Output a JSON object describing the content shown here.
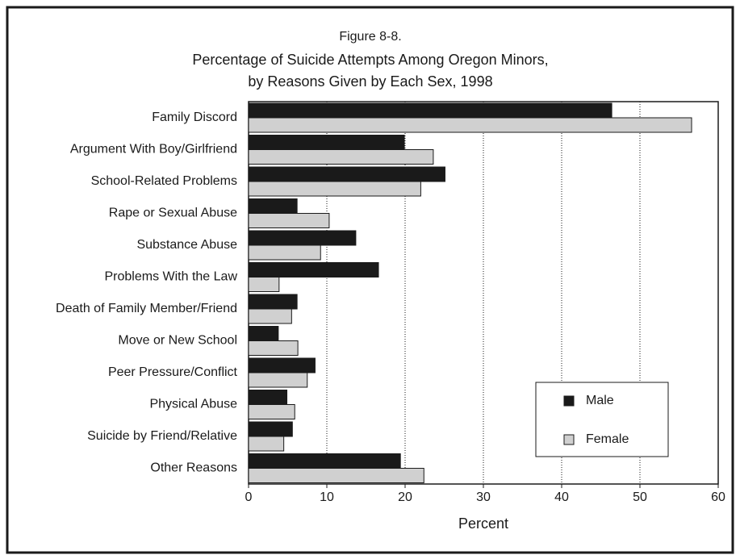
{
  "chart_data": {
    "type": "bar",
    "orientation": "horizontal",
    "title": [
      "Figure 8-8.",
      "Percentage of Suicide Attempts Among Oregon Minors,",
      "by Reasons Given by Each Sex, 1998"
    ],
    "xlabel": "Percent",
    "categories": [
      "Family Discord",
      "Argument With Boy/Girlfriend",
      "School-Related Problems",
      "Rape or Sexual Abuse",
      "Substance Abuse",
      "Problems With the Law",
      "Death of Family Member/Friend",
      "Move or New School",
      "Peer Pressure/Conflict",
      "Physical Abuse",
      "Suicide by Friend/Relative",
      "Other Reasons"
    ],
    "series": [
      {
        "name": "Male",
        "color": "#1a1a1a",
        "values": [
          46.4,
          19.9,
          25.1,
          6.2,
          13.7,
          16.6,
          6.2,
          3.8,
          8.5,
          4.9,
          5.6,
          19.4
        ]
      },
      {
        "name": "Female",
        "color": "#d0d0d0",
        "values": [
          56.6,
          23.6,
          22.0,
          10.3,
          9.2,
          3.9,
          5.5,
          6.3,
          7.5,
          5.9,
          4.5,
          22.4
        ]
      }
    ],
    "xlim": [
      0,
      60
    ],
    "xticks": [
      0,
      10,
      20,
      30,
      40,
      50,
      60
    ],
    "grid": true,
    "legend": "lower right"
  }
}
